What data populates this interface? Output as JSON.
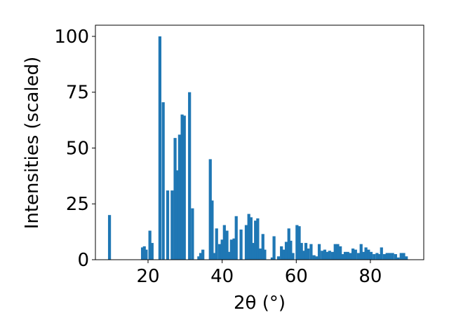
{
  "chart_data": {
    "type": "bar",
    "xlabel": "2θ (°)",
    "ylabel": "Intensities (scaled)",
    "color": "#1f77b4",
    "bar_width": 0.8,
    "x": [
      9.6,
      18.5,
      19.0,
      19.5,
      20.5,
      21.1,
      23.2,
      24.1,
      25.3,
      26.5,
      27.3,
      27.9,
      28.5,
      29.2,
      29.8,
      31.2,
      32.0,
      33.7,
      34.2,
      34.8,
      36.8,
      37.3,
      37.8,
      38.5,
      39.3,
      40.0,
      40.6,
      41.3,
      42.0,
      42.5,
      43.2,
      43.8,
      45.1,
      46.5,
      47.2,
      47.8,
      48.4,
      49.0,
      49.6,
      50.3,
      51.0,
      51.5,
      53.5,
      54.0,
      55.2,
      56.0,
      56.6,
      57.3,
      58.0,
      58.5,
      59.1,
      60.2,
      60.8,
      61.4,
      62.0,
      62.6,
      63.2,
      64.0,
      64.8,
      65.5,
      66.2,
      67.0,
      67.7,
      68.4,
      69.0,
      69.8,
      70.5,
      71.2,
      71.9,
      72.6,
      73.2,
      73.9,
      74.6,
      75.3,
      76.0,
      76.8,
      77.5,
      78.1,
      78.8,
      79.5,
      80.2,
      81.0,
      81.8,
      82.5,
      83.0,
      83.8,
      84.5,
      85.2,
      86.0,
      86.8,
      87.5,
      88.3,
      89.0,
      89.7
    ],
    "values": [
      20,
      5.5,
      6,
      4.5,
      13,
      7.5,
      100,
      70.5,
      31,
      31,
      54.5,
      40,
      56,
      65,
      64.5,
      75,
      23,
      1.5,
      3,
      4.5,
      45,
      26.5,
      3,
      14,
      7,
      9,
      15.5,
      13,
      3.5,
      9,
      9.5,
      19.5,
      13.5,
      15.5,
      20.5,
      19,
      7.5,
      17.5,
      18.5,
      5,
      11.5,
      4.5,
      1,
      10.5,
      1.5,
      6,
      4.5,
      8,
      14,
      8.5,
      3,
      15.5,
      15,
      7.5,
      4,
      7.5,
      5,
      7,
      2,
      1.5,
      7,
      4,
      4.5,
      3.5,
      4,
      3.5,
      7,
      7,
      6,
      2.5,
      3.5,
      3.5,
      3,
      5,
      4.5,
      3,
      7,
      3.5,
      5.5,
      4.5,
      3.5,
      2.5,
      3,
      2.5,
      5.5,
      2.5,
      3,
      3,
      3,
      2.5,
      1,
      3,
      3,
      1.5
    ],
    "xlim": [
      5.8,
      94.4
    ],
    "ylim": [
      0,
      105
    ],
    "xticks": [
      20,
      40,
      60,
      80
    ],
    "yticks": [
      0,
      25,
      50,
      75,
      100
    ]
  }
}
